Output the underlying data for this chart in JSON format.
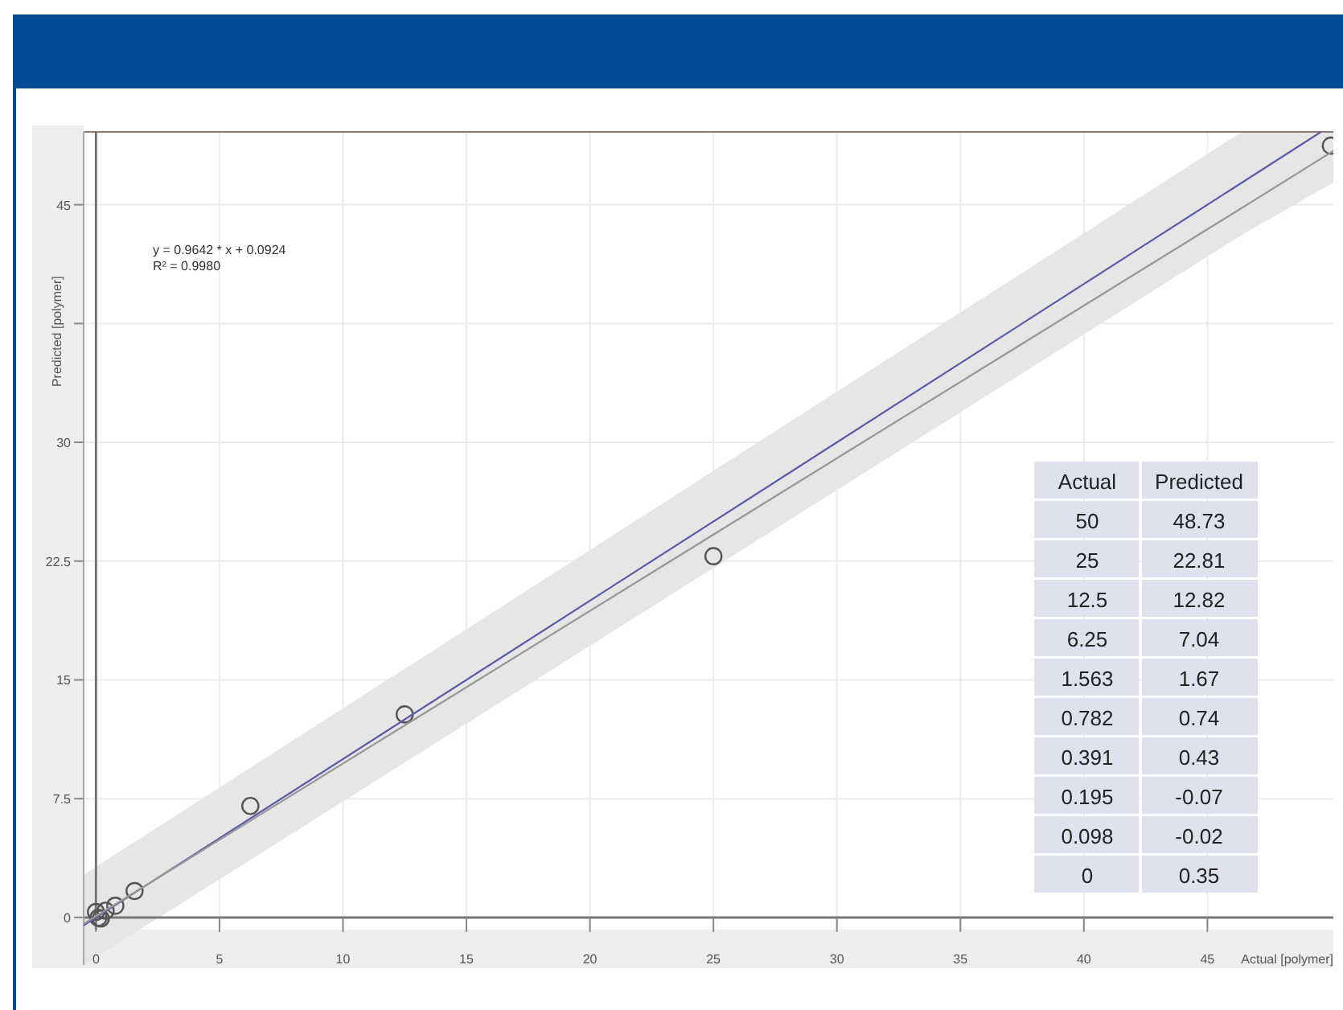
{
  "chart_data": [
    {
      "type": "scatter",
      "xlabel": "Actual [polymer]",
      "ylabel": "Predicted [polymer]",
      "annotations": [
        "y = 0.9642 * x + 0.0924",
        "R² = 0.9980"
      ],
      "xlim": [
        -0.5,
        50.1
      ],
      "ylim": [
        -3,
        49.6
      ],
      "xticks": [
        0,
        5,
        10,
        15,
        20,
        25,
        30,
        35,
        40,
        45
      ],
      "yticks": [
        0,
        7.5,
        15,
        22.5,
        30,
        {
          "value": 37.5,
          "label": null
        },
        45
      ],
      "grid": true,
      "marker": "circle",
      "series": [
        {
          "type": "scatter",
          "color": "#555555",
          "x": [
            50,
            25,
            12.5,
            6.25,
            1.563,
            0.782,
            0.391,
            0.195,
            0.098,
            0
          ],
          "values": [
            48.73,
            22.81,
            12.82,
            7.04,
            1.67,
            0.74,
            0.43,
            -0.07,
            -0.02,
            0.35
          ]
        },
        {
          "type": "line",
          "color": "#5a5aa8",
          "marker": "none",
          "x": [
            -0.5,
            49.6
          ],
          "values": [
            -0.5,
            49.6
          ]
        },
        {
          "type": "line",
          "color": "#999999",
          "marker": "none",
          "x": [
            -0.5,
            46.4,
            50.1
          ],
          "values": [
            -0.4,
            44.8,
            48.4
          ],
          "lower": [
            -3.0,
            43.1,
            46.4
          ],
          "upper": [
            2.7,
            49.6,
            49.6
          ]
        }
      ]
    },
    {
      "type": "other",
      "annotations": [
        "Actual",
        "Predicted"
      ],
      "data_labels": true,
      "categories": [
        "50",
        "25",
        "12.5",
        "6.25",
        "1.563",
        "0.782",
        "0.391",
        "0.195",
        "0.098",
        "0"
      ],
      "values": [
        48.73,
        22.81,
        12.82,
        7.04,
        1.67,
        0.74,
        0.43,
        -0.07,
        -0.02,
        0.35
      ]
    }
  ]
}
